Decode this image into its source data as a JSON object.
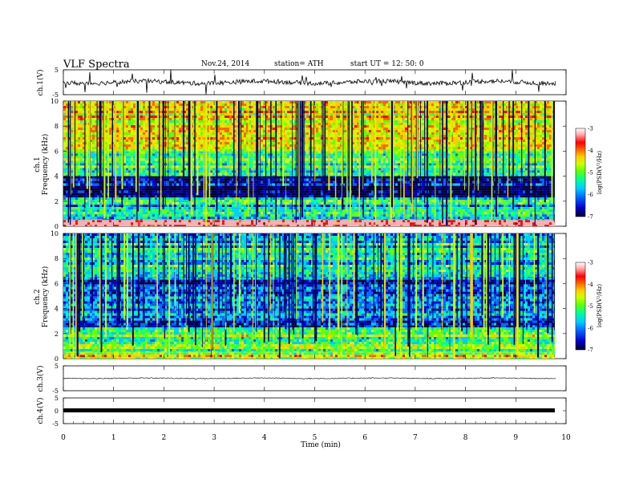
{
  "header": {
    "title": "VLF  Spectra",
    "date": "Nov.24, 2014",
    "station": "station= ATH",
    "start": "start  UT  =   12: 50: 0"
  },
  "colors": {
    "spectrogram_scale": [
      "#000033",
      "#0000cc",
      "#0066ff",
      "#00ccff",
      "#00ff99",
      "#66ff00",
      "#ccff00",
      "#ffcc00",
      "#ff6600",
      "#ff0000",
      "#ffaaaa",
      "#ffffff"
    ],
    "trace": "#000000",
    "axis": "#000000"
  },
  "chart_data": [
    {
      "type": "line",
      "name": "ch.1 waveform",
      "ylabel": "ch.1(V)",
      "ylim": [
        -5,
        5
      ],
      "yticks": [
        "5",
        "-5"
      ],
      "x_range": [
        0,
        9.8
      ],
      "baseline_mean": 0,
      "amplitude_note": ""
    },
    {
      "type": "heatmap",
      "ylabel": "ch.1\nFrequency  (kHz)",
      "ylim": [
        0,
        10
      ],
      "yticks": [
        "0",
        "2",
        "4",
        "6",
        "8",
        "10"
      ],
      "x_range": [
        0,
        9.8
      ],
      "colorbar": {
        "label": "log(PSD(V²/Hz)",
        "range": [
          -7,
          -3
        ],
        "ticks": [
          "-3",
          "-4",
          "-5",
          "-6",
          "-7"
        ]
      },
      "bands": [
        {
          "f_low": 0.0,
          "f_high": 0.5,
          "logpsd": -3.3
        },
        {
          "f_low": 0.5,
          "f_high": 2.3,
          "logpsd": -5.6
        },
        {
          "f_low": 2.3,
          "f_high": 4.0,
          "logpsd": -6.6
        },
        {
          "f_low": 4.0,
          "f_high": 6.0,
          "logpsd": -5.2
        },
        {
          "f_low": 6.0,
          "f_high": 10.0,
          "logpsd": -4.4
        }
      ]
    },
    {
      "type": "heatmap",
      "ylabel": "ch.2\nFrequency  (kHz)",
      "ylim": [
        0,
        10
      ],
      "yticks": [
        "0",
        "2",
        "4",
        "6",
        "8",
        "10"
      ],
      "x_range": [
        0,
        9.8
      ],
      "colorbar": {
        "label": "log(PSD(V²/Hz)",
        "range": [
          -7,
          -3
        ],
        "ticks": [
          "-3",
          "-4",
          "-5",
          "-6",
          "-7"
        ]
      },
      "bands": [
        {
          "f_low": 0.0,
          "f_high": 0.5,
          "logpsd": -4.6
        },
        {
          "f_low": 0.5,
          "f_high": 2.5,
          "logpsd": -5.0
        },
        {
          "f_low": 2.5,
          "f_high": 6.5,
          "logpsd": -6.1
        },
        {
          "f_low": 6.5,
          "f_high": 10.0,
          "logpsd": -5.6
        }
      ]
    },
    {
      "type": "line",
      "name": "ch.3 waveform",
      "ylabel": "ch.3(V)",
      "ylim": [
        -5,
        5
      ],
      "yticks": [
        "5",
        "-5"
      ],
      "x_range": [
        0,
        9.8
      ],
      "baseline_mean": 0
    },
    {
      "type": "line",
      "name": "ch.4 waveform",
      "ylabel": "ch.4(V)",
      "ylim": [
        -5,
        5
      ],
      "yticks": [
        "5",
        "0",
        "-5"
      ],
      "x_range": [
        0,
        9.8
      ],
      "baseline_mean": 0
    }
  ],
  "x_axis": {
    "label": "Time  (min)",
    "xlim": [
      0,
      10
    ],
    "ticks": [
      "0",
      "1",
      "2",
      "3",
      "4",
      "5",
      "6",
      "7",
      "8",
      "9",
      "10"
    ]
  }
}
